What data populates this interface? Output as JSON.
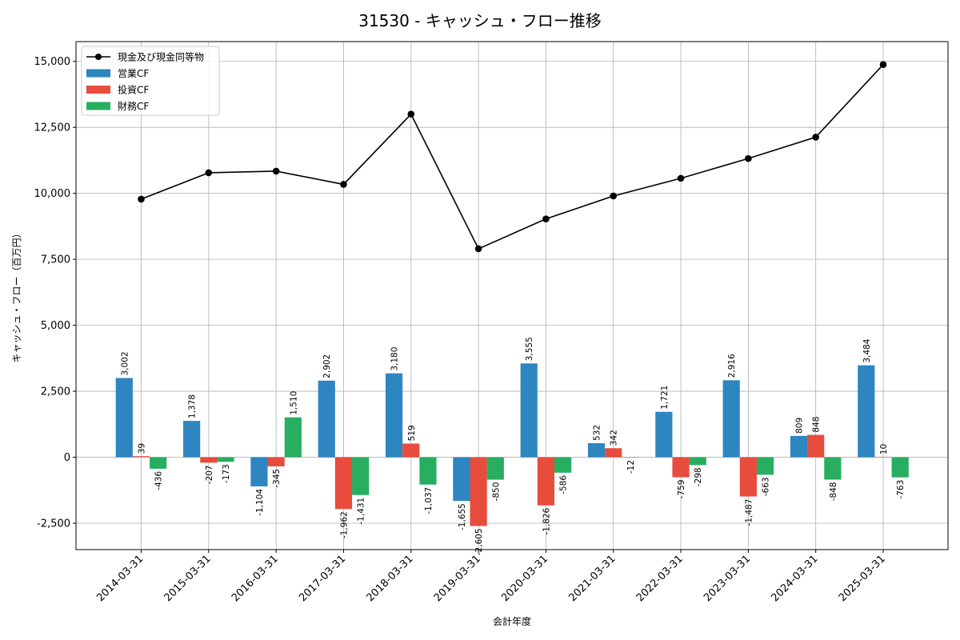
{
  "chart_data": {
    "type": "bar",
    "title": "31530 - キャッシュ・フロー推移",
    "xlabel": "会計年度",
    "ylabel": "キャッシュ・フロー（百万円）",
    "categories": [
      "2014-03-31",
      "2015-03-31",
      "2016-03-31",
      "2017-03-31",
      "2018-03-31",
      "2019-03-31",
      "2020-03-31",
      "2021-03-31",
      "2022-03-31",
      "2023-03-31",
      "2024-03-31",
      "2025-03-31"
    ],
    "ylim": [
      -3500,
      15750
    ],
    "yticks": [
      -2500,
      0,
      2500,
      5000,
      7500,
      10000,
      12500,
      15000
    ],
    "ytick_labels": [
      "-2,500",
      "0",
      "2,500",
      "5,000",
      "7,500",
      "10,000",
      "12,500",
      "15,000"
    ],
    "grid": true,
    "legend": "top-left",
    "series": [
      {
        "name": "営業CF",
        "kind": "bar",
        "color": "#2e86c1",
        "values": [
          3002,
          1378,
          -1104,
          2902,
          3180,
          -1655,
          3555,
          532,
          1721,
          2916,
          809,
          3484
        ],
        "labels": [
          "3,002",
          "1,378",
          "-1,104",
          "2,902",
          "3,180",
          "-1,655",
          "3,555",
          "532",
          "1,721",
          "2,916",
          "809",
          "3,484"
        ]
      },
      {
        "name": "投資CF",
        "kind": "bar",
        "color": "#e74c3c",
        "values": [
          39,
          -207,
          -345,
          -1962,
          519,
          -2605,
          -1826,
          342,
          -759,
          -1487,
          848,
          10
        ],
        "labels": [
          "39",
          "-207",
          "-345",
          "-1,962",
          "519",
          "-2,605",
          "-1,826",
          "342",
          "-759",
          "-1,487",
          "848",
          "10"
        ]
      },
      {
        "name": "財務CF",
        "kind": "bar",
        "color": "#27ae60",
        "values": [
          -436,
          -173,
          1510,
          -1431,
          -1037,
          -850,
          -586,
          -12,
          -298,
          -663,
          -848,
          -763
        ],
        "labels": [
          "-436",
          "-173",
          "1,510",
          "-1,431",
          "-1,037",
          "-850",
          "-586",
          "-12",
          "-298",
          "-663",
          "-848",
          "-763"
        ]
      },
      {
        "name": "現金及び現金同等物",
        "kind": "line",
        "color": "#000000",
        "values": [
          9780,
          10780,
          10840,
          10340,
          13000,
          7900,
          9030,
          9900,
          10570,
          11320,
          12130,
          14880
        ]
      }
    ]
  }
}
